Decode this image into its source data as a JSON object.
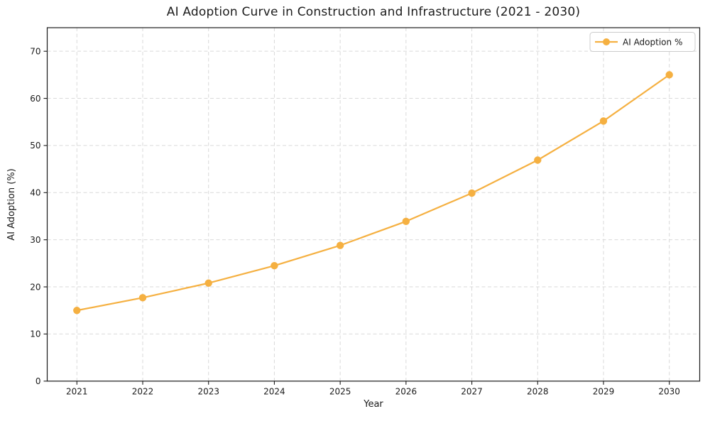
{
  "chart_data": {
    "type": "line",
    "title": "AI Adoption Curve in Construction and Infrastructure (2021 - 2030)",
    "xlabel": "Year",
    "ylabel": "AI Adoption (%)",
    "categories": [
      "2021",
      "2022",
      "2023",
      "2024",
      "2025",
      "2026",
      "2027",
      "2028",
      "2029",
      "2030"
    ],
    "series": [
      {
        "name": "AI Adoption %",
        "values": [
          15.0,
          17.7,
          20.8,
          24.5,
          28.8,
          33.9,
          39.9,
          46.9,
          55.2,
          65.0
        ],
        "color": "#F5B041",
        "marker": "circle"
      }
    ],
    "ylim": [
      0,
      75
    ],
    "yticks": [
      0,
      10,
      20,
      30,
      40,
      50,
      60,
      70
    ],
    "grid": true,
    "grid_style": "dashed",
    "grid_color": "#D9D9D9",
    "legend": {
      "position": "upper right",
      "entries": [
        "AI Adoption %"
      ]
    }
  }
}
